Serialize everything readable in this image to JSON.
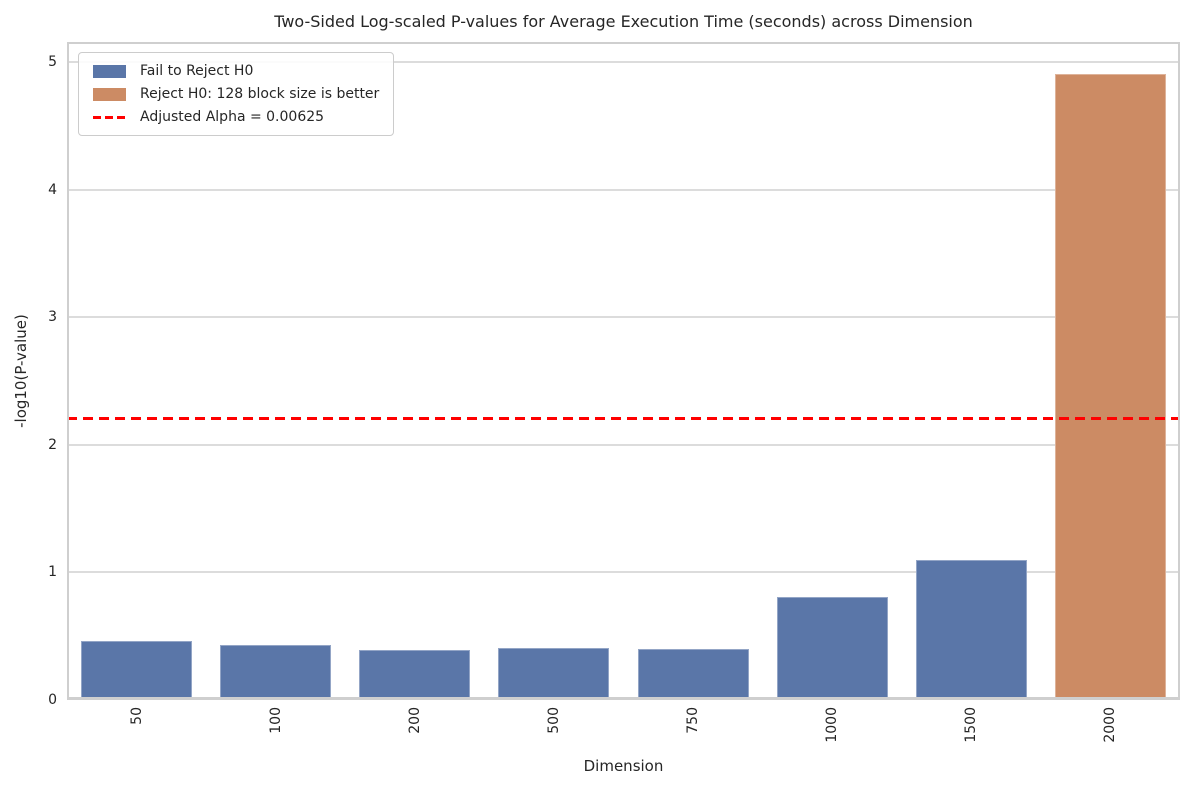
{
  "chart_data": {
    "type": "bar",
    "title": "Two-Sided Log-scaled P-values for Average Execution Time (seconds) across Dimension",
    "xlabel": "Dimension",
    "ylabel": "-log10(P-value)",
    "categories": [
      "50",
      "100",
      "200",
      "500",
      "750",
      "1000",
      "1500",
      "2000"
    ],
    "values": [
      0.46,
      0.43,
      0.39,
      0.41,
      0.4,
      0.81,
      1.1,
      4.91
    ],
    "reject_h0": [
      false,
      false,
      false,
      false,
      false,
      false,
      false,
      true
    ],
    "yticks": [
      0,
      1,
      2,
      3,
      4,
      5
    ],
    "ylim": [
      0,
      5.16
    ],
    "grid": "horizontal",
    "legend_position": "upper-left",
    "legend": [
      {
        "label": "Fail to Reject H0",
        "type": "patch",
        "color": "#5A76A8"
      },
      {
        "label": "Reject H0: 128 block size is better",
        "type": "patch",
        "color": "#CC8B64"
      },
      {
        "label": "Adjusted Alpha = 0.00625",
        "type": "dashed-line",
        "color": "#FF0000"
      }
    ],
    "alpha_line": {
      "label": "Adjusted Alpha = 0.00625",
      "alpha": 0.00625,
      "neg_log10_value": 2.204,
      "color": "#FF0000",
      "style": "dashed"
    }
  },
  "colors": {
    "fail_bar": "#5A76A8",
    "reject_bar": "#CC8B64",
    "threshold": "#FF0000",
    "gridline": "#DCDCDC",
    "spine": "#CFCFCF",
    "text": "#262626",
    "background": "#FFFFFF"
  }
}
